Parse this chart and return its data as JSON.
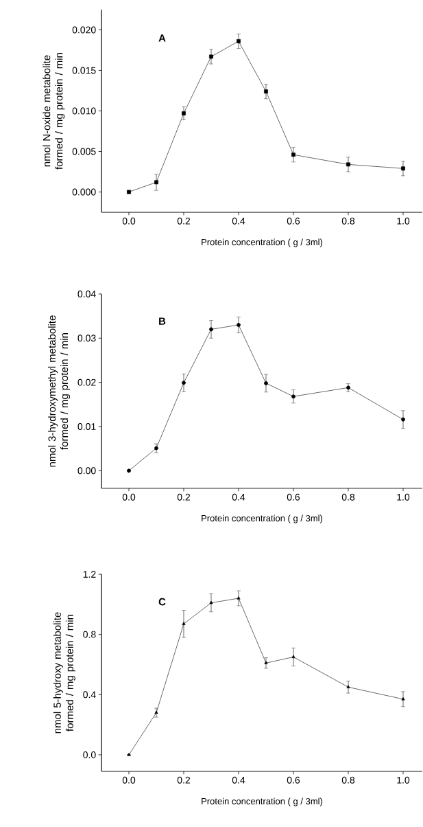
{
  "chart_data": [
    {
      "type": "line",
      "annotations": [
        "A"
      ],
      "xlabel": "Protein concentration ( g / 3ml)",
      "ylabel": "nmol N-oxide metabolite formed / mg protein / min",
      "x": [
        0.0,
        0.1,
        0.2,
        0.3,
        0.4,
        0.5,
        0.6,
        0.8,
        1.0
      ],
      "series": [
        {
          "color": "#000000",
          "marker": "square",
          "values": [
            0.0,
            0.0012,
            0.0097,
            0.0167,
            0.0186,
            0.0124,
            0.0046,
            0.0034,
            0.0029
          ],
          "errors": [
            null,
            0.001,
            0.0008,
            0.0009,
            0.0009,
            0.0009,
            0.0009,
            0.0009,
            0.0009
          ]
        }
      ],
      "xlim": [
        -0.1,
        1.07
      ],
      "ylim": [
        -0.0025,
        0.0225
      ],
      "xticks": [
        {
          "value": 0,
          "label": "0.0"
        },
        {
          "value": 0.2,
          "label": "0.2"
        },
        {
          "value": 0.4,
          "label": "0.4"
        },
        {
          "value": 0.6,
          "label": "0.6"
        },
        {
          "value": 0.8,
          "label": "0.8"
        },
        {
          "value": 1,
          "label": "1.0"
        }
      ],
      "yticks": [
        {
          "value": 0,
          "label": "0.000"
        },
        {
          "value": 0.005,
          "label": "0.005"
        },
        {
          "value": 0.01,
          "label": "0.010"
        },
        {
          "value": 0.015,
          "label": "0.015"
        },
        {
          "value": 0.02,
          "label": "0.020"
        }
      ]
    },
    {
      "type": "line",
      "annotations": [
        "B"
      ],
      "xlabel": "Protein concentration ( g / 3ml)",
      "ylabel": "nmol 3-hydroxymethyl metabolite formed / mg protein / min",
      "x": [
        0.0,
        0.1,
        0.2,
        0.3,
        0.4,
        0.5,
        0.6,
        0.8,
        1.0
      ],
      "series": [
        {
          "color": "#000000",
          "marker": "circle",
          "values": [
            0.0,
            0.0051,
            0.0199,
            0.032,
            0.033,
            0.0198,
            0.0168,
            0.0188,
            0.0116
          ],
          "errors": [
            null,
            0.001,
            0.002,
            0.002,
            0.0018,
            0.002,
            0.0015,
            0.0009,
            0.002
          ]
        }
      ],
      "xlim": [
        -0.1,
        1.07
      ],
      "ylim": [
        -0.004,
        0.04
      ],
      "xticks": [
        {
          "value": 0,
          "label": "0.0"
        },
        {
          "value": 0.2,
          "label": "0.2"
        },
        {
          "value": 0.4,
          "label": "0.4"
        },
        {
          "value": 0.6,
          "label": "0.6"
        },
        {
          "value": 0.8,
          "label": "0.8"
        },
        {
          "value": 1,
          "label": "1.0"
        }
      ],
      "yticks": [
        {
          "value": 0,
          "label": "0.00"
        },
        {
          "value": 0.01,
          "label": "0.01"
        },
        {
          "value": 0.02,
          "label": "0.02"
        },
        {
          "value": 0.03,
          "label": "0.03"
        },
        {
          "value": 0.04,
          "label": "0.04"
        }
      ]
    },
    {
      "type": "line",
      "annotations": [
        "C"
      ],
      "xlabel": "Protein concentration ( g / 3ml)",
      "ylabel": "nmol 5-hydroxy metabolite formed / mg protein / min",
      "x": [
        0.0,
        0.1,
        0.2,
        0.3,
        0.4,
        0.5,
        0.6,
        0.8,
        1.0
      ],
      "series": [
        {
          "color": "#000000",
          "marker": "triangle",
          "values": [
            0.0,
            0.28,
            0.87,
            1.01,
            1.04,
            0.61,
            0.65,
            0.45,
            0.37
          ],
          "errors": [
            null,
            0.03,
            0.09,
            0.06,
            0.05,
            0.035,
            0.06,
            0.04,
            0.05
          ]
        }
      ],
      "xlim": [
        -0.1,
        1.07
      ],
      "ylim": [
        -0.11,
        1.2
      ],
      "xticks": [
        {
          "value": 0,
          "label": "0.0"
        },
        {
          "value": 0.2,
          "label": "0.2"
        },
        {
          "value": 0.4,
          "label": "0.4"
        },
        {
          "value": 0.6,
          "label": "0.6"
        },
        {
          "value": 0.8,
          "label": "0.8"
        },
        {
          "value": 1,
          "label": "1.0"
        }
      ],
      "yticks": [
        {
          "value": 0,
          "label": "0.0"
        },
        {
          "value": 0.4,
          "label": "0.4"
        },
        {
          "value": 0.8,
          "label": "0.8"
        },
        {
          "value": 1.2,
          "label": "1.2"
        }
      ]
    }
  ]
}
